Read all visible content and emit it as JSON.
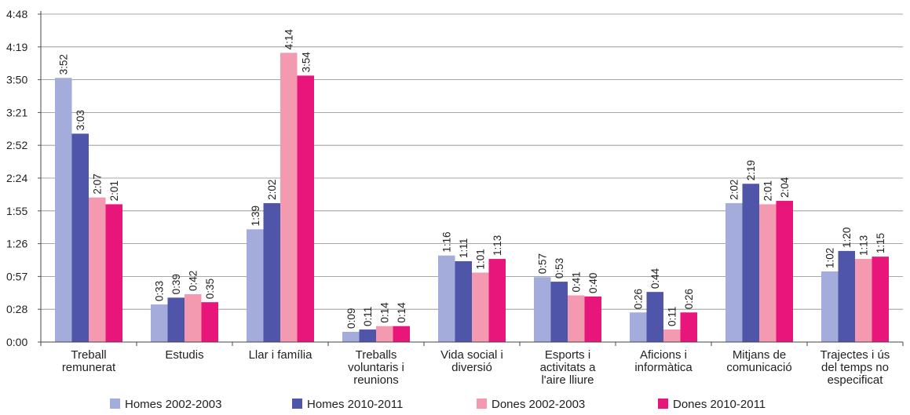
{
  "chart_data": {
    "type": "bar",
    "title": "",
    "xlabel": "",
    "ylabel": "",
    "y_ticks": [
      "0:00",
      "0:28",
      "0:57",
      "1:26",
      "1:55",
      "2:24",
      "2:52",
      "3:21",
      "3:50",
      "4:19",
      "4:48"
    ],
    "ylim_minutes": [
      0,
      288
    ],
    "grid": true,
    "legend_position": "bottom",
    "categories": [
      [
        "Treball",
        "remunerat"
      ],
      [
        "Estudis"
      ],
      [
        "Llar i família"
      ],
      [
        "Treballs",
        "voluntaris i",
        "reunions"
      ],
      [
        "Vida social i",
        "diversió"
      ],
      [
        "Esports i",
        "activitats a",
        "l'aire lliure"
      ],
      [
        "Aficions i",
        "informàtica"
      ],
      [
        "Mitjans de",
        "comunicació"
      ],
      [
        "Trajectes i ús",
        "del temps no",
        "especificat"
      ]
    ],
    "series": [
      {
        "name": "Homes 2002-2003",
        "color": "#a3acdb",
        "minutes": [
          232,
          33,
          99,
          9,
          76,
          57,
          26,
          122,
          62
        ],
        "labels": [
          "3:52",
          "0:33",
          "1:39",
          "0:09",
          "1:16",
          "0:57",
          "0:26",
          "2:02",
          "1:02"
        ]
      },
      {
        "name": "Homes 2010-2011",
        "color": "#4f55a8",
        "minutes": [
          183,
          39,
          122,
          11,
          71,
          53,
          44,
          139,
          80
        ],
        "labels": [
          "3:03",
          "0:39",
          "2:02",
          "0:11",
          "1:11",
          "0:53",
          "0:44",
          "2:19",
          "1:20"
        ]
      },
      {
        "name": "Dones 2002-2003",
        "color": "#f49ab0",
        "minutes": [
          127,
          42,
          254,
          14,
          61,
          41,
          11,
          121,
          73
        ],
        "labels": [
          "2:07",
          "0:42",
          "4:14",
          "0:14",
          "1:01",
          "0:41",
          "0:11",
          "2:01",
          "1:13"
        ]
      },
      {
        "name": "Dones 2010-2011",
        "color": "#e8157a",
        "minutes": [
          121,
          35,
          234,
          14,
          73,
          40,
          26,
          124,
          75
        ],
        "labels": [
          "2:01",
          "0:35",
          "3:54",
          "0:14",
          "1:13",
          "0:40",
          "0:26",
          "2:04",
          "1:15"
        ]
      }
    ]
  }
}
